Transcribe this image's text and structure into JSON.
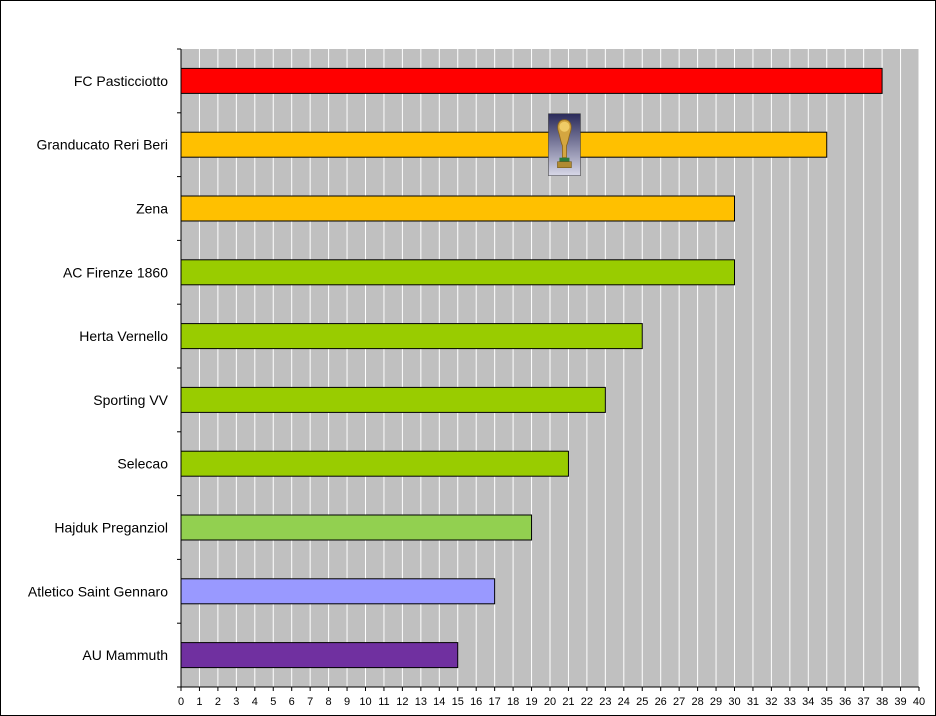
{
  "chart_data": {
    "type": "bar",
    "orientation": "horizontal",
    "categories": [
      "FC Pasticciotto",
      "Granducato Reri Beri",
      "Zena",
      "AC Firenze 1860",
      "Herta Vernello",
      "Sporting VV",
      "Selecao",
      "Hajduk Preganziol",
      "Atletico Saint Gennaro",
      "AU Mammuth"
    ],
    "values": [
      38,
      35,
      30,
      30,
      25,
      23,
      21,
      19,
      17,
      15
    ],
    "bar_colors": [
      "#ff0000",
      "#ffc000",
      "#ffc000",
      "#99cc00",
      "#99cc00",
      "#99cc00",
      "#99cc00",
      "#92d050",
      "#9999ff",
      "#7030a0"
    ],
    "xlim": [
      0,
      40
    ],
    "x_ticks": [
      "0",
      "1",
      "2",
      "3",
      "4",
      "5",
      "6",
      "7",
      "8",
      "9",
      "10",
      "11",
      "12",
      "13",
      "14",
      "15",
      "16",
      "17",
      "18",
      "19",
      "20",
      "21",
      "22",
      "23",
      "24",
      "25",
      "26",
      "27",
      "28",
      "29",
      "30",
      "31",
      "32",
      "33",
      "34",
      "35",
      "36",
      "37",
      "38",
      "39",
      "40"
    ],
    "grid": "vertical",
    "plot_background": "#c0c0c0",
    "gridline_color": "#ffffff",
    "trophy_icon": {
      "name": "trophy-icon",
      "category_index": 1,
      "at_value": 21
    },
    "title": "",
    "xlabel": "",
    "ylabel": ""
  }
}
